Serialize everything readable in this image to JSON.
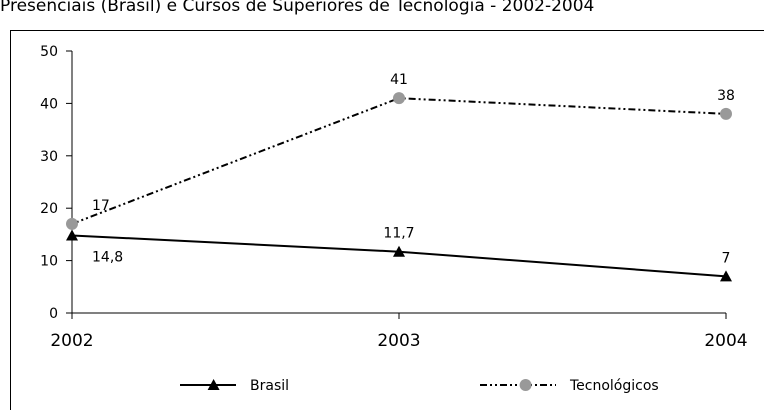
{
  "chart_data": {
    "type": "line",
    "title": "Presenciais (Brasil) e Cursos de Superiores de Tecnologia - 2002-2004",
    "categories": [
      "2002",
      "2003",
      "2004"
    ],
    "series": [
      {
        "name": "Brasil",
        "color": "#000000",
        "marker": "triangle",
        "marker_color": "#000000",
        "dash": "solid",
        "values": [
          14.8,
          11.7,
          7
        ],
        "value_labels": [
          "14,8",
          "11,7",
          "7"
        ]
      },
      {
        "name": "Tecnológicos",
        "color": "#000000",
        "marker": "circle",
        "marker_color": "#999999",
        "dash": "dash-dot-dot",
        "values": [
          17,
          41,
          38
        ]
      }
    ],
    "ylim": [
      0,
      50
    ],
    "yticks": [
      0,
      10,
      20,
      30,
      40,
      50
    ],
    "grid": false,
    "legend": "bottom"
  }
}
